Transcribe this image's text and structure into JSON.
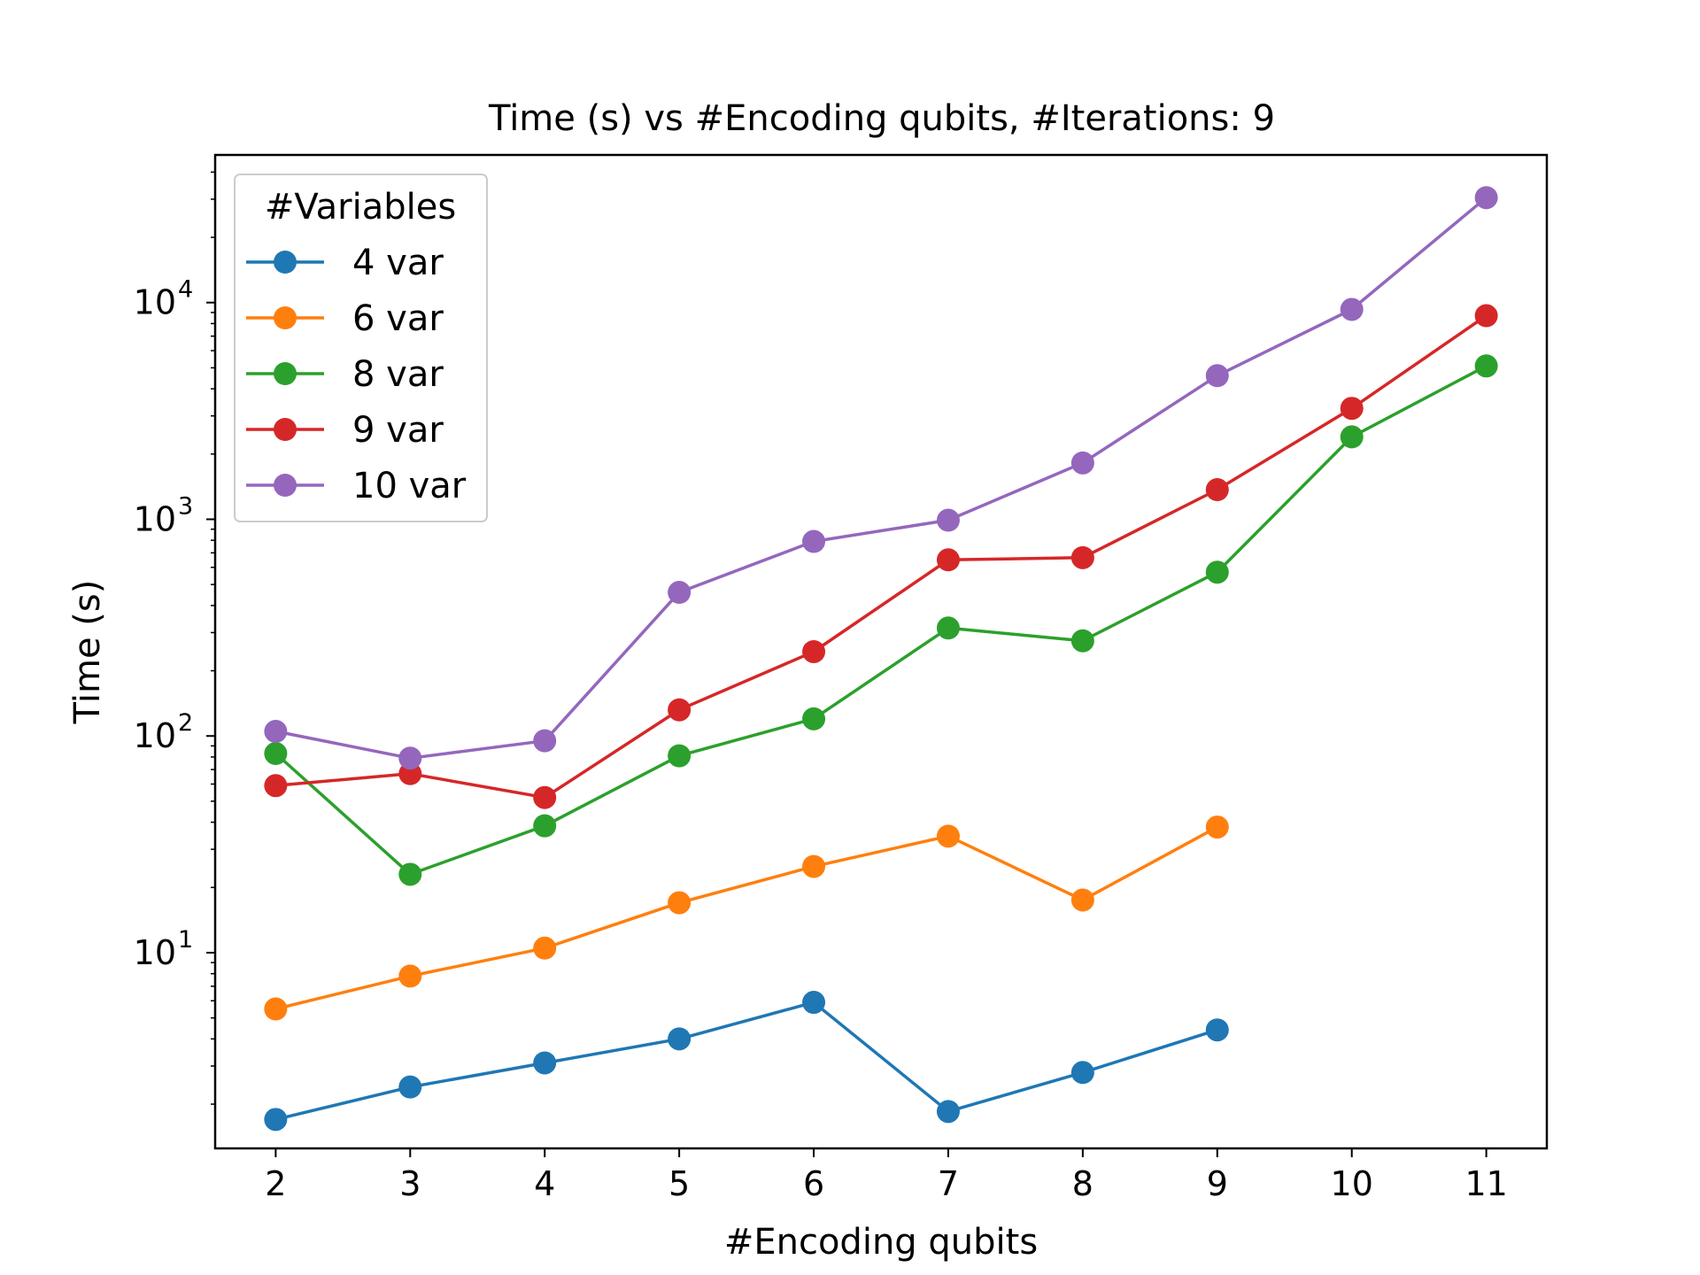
{
  "chart_data": {
    "type": "line",
    "title": "Time (s) vs #Encoding qubits, #Iterations: 9",
    "xlabel": "#Encoding qubits",
    "ylabel": "Time (s)",
    "yscale": "log",
    "x_ticks": [
      2,
      3,
      4,
      5,
      6,
      7,
      8,
      9,
      10,
      11
    ],
    "y_ticks": [
      {
        "value": 10,
        "base": "10",
        "exp": "1"
      },
      {
        "value": 100,
        "base": "10",
        "exp": "2"
      },
      {
        "value": 1000,
        "base": "10",
        "exp": "3"
      },
      {
        "value": 10000,
        "base": "10",
        "exp": "4"
      }
    ],
    "xlim": [
      1.55,
      11.45
    ],
    "ylim": [
      1.25,
      48000
    ],
    "grid": false,
    "legend": {
      "title": "#Variables",
      "position": "top-left"
    },
    "series": [
      {
        "name": "4 var",
        "color": "#1f77b4",
        "x": [
          2,
          3,
          4,
          5,
          6,
          7,
          8,
          9
        ],
        "y": [
          1.7,
          2.4,
          3.1,
          4.0,
          5.9,
          1.85,
          2.8,
          4.4
        ]
      },
      {
        "name": "6 var",
        "color": "#ff7f0e",
        "x": [
          2,
          3,
          4,
          5,
          6,
          7,
          8,
          9
        ],
        "y": [
          5.5,
          7.8,
          10.5,
          17,
          25,
          34.5,
          17.5,
          38
        ]
      },
      {
        "name": "8 var",
        "color": "#2ca02c",
        "x": [
          2,
          3,
          4,
          5,
          6,
          7,
          8,
          9,
          10,
          11
        ],
        "y": [
          83,
          23,
          38.5,
          81,
          120,
          315,
          275,
          570,
          2400,
          5100
        ]
      },
      {
        "name": "9 var",
        "color": "#d62728",
        "x": [
          2,
          3,
          4,
          5,
          6,
          7,
          8,
          9,
          10,
          11
        ],
        "y": [
          59,
          67,
          52,
          132,
          245,
          650,
          665,
          1370,
          3250,
          8700
        ]
      },
      {
        "name": "10 var",
        "color": "#9467bd",
        "x": [
          2,
          3,
          4,
          5,
          6,
          7,
          8,
          9,
          10,
          11
        ],
        "y": [
          105,
          79,
          95,
          460,
          790,
          990,
          1820,
          4600,
          9300,
          30500
        ]
      }
    ]
  }
}
